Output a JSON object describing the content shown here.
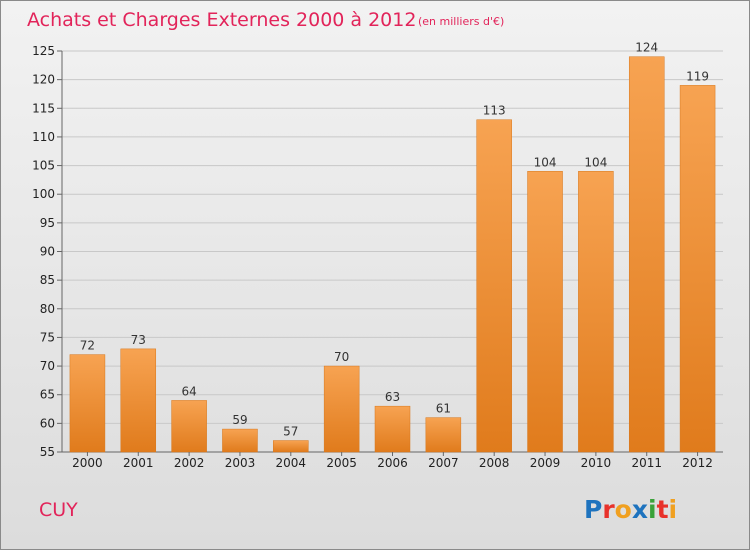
{
  "chart_data": {
    "type": "bar",
    "title": "Achats et Charges Externes 2000 à 2012",
    "subtitle": "(en milliers d'€)",
    "categories": [
      "2000",
      "2001",
      "2002",
      "2003",
      "2004",
      "2005",
      "2006",
      "2007",
      "2008",
      "2009",
      "2010",
      "2011",
      "2012"
    ],
    "values": [
      72,
      73,
      64,
      59,
      57,
      70,
      63,
      61,
      113,
      104,
      104,
      124,
      119
    ],
    "ylim": [
      55,
      125
    ],
    "yticks": [
      55,
      60,
      65,
      70,
      75,
      80,
      85,
      90,
      95,
      100,
      105,
      110,
      115,
      120,
      125
    ],
    "grid": true,
    "legend": "none",
    "bar_color_top": "#f7a352",
    "bar_color_bottom": "#e07b1c"
  },
  "commune": "CUY",
  "logo": {
    "text": "Proxiti",
    "colors": [
      "#1e73be",
      "#e8322b",
      "#f0a020",
      "#1e73be",
      "#3aa23a",
      "#e8322b",
      "#f0a020"
    ]
  }
}
